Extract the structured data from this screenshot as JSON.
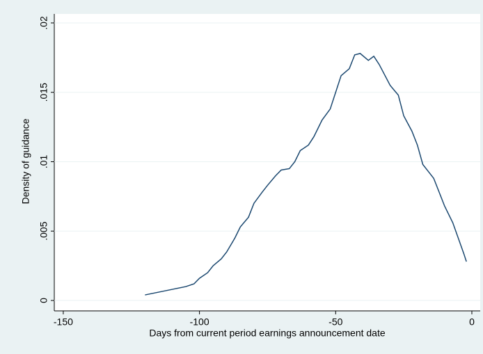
{
  "chart_data": {
    "type": "line",
    "x_label": "Days from current period earnings announcement date",
    "y_label": "Density of guidance",
    "x": [
      -120,
      -115,
      -110,
      -105,
      -102,
      -100,
      -97,
      -95,
      -92,
      -90,
      -87,
      -85,
      -82,
      -80,
      -77,
      -75,
      -72,
      -70,
      -67,
      -65,
      -63,
      -60,
      -58,
      -55,
      -52,
      -50,
      -48,
      -45,
      -43,
      -41,
      -38,
      -36,
      -34,
      -30,
      -27,
      -25,
      -22,
      -20,
      -18,
      -16,
      -14,
      -12,
      -10,
      -7,
      -5,
      -3,
      -2
    ],
    "series": [
      {
        "color": "#1a476f",
        "values": [
          0.0004,
          0.0006,
          0.0008,
          0.001,
          0.0012,
          0.0016,
          0.002,
          0.0025,
          0.003,
          0.0035,
          0.0045,
          0.0053,
          0.006,
          0.007,
          0.0078,
          0.0083,
          0.009,
          0.0094,
          0.0095,
          0.01,
          0.0108,
          0.0112,
          0.0118,
          0.013,
          0.0138,
          0.015,
          0.0162,
          0.0167,
          0.0177,
          0.0178,
          0.0173,
          0.0176,
          0.017,
          0.0155,
          0.0148,
          0.0133,
          0.0122,
          0.0112,
          0.0098,
          0.0093,
          0.0088,
          0.0078,
          0.0068,
          0.0056,
          0.0045,
          0.0034,
          0.0028
        ]
      }
    ],
    "xlim": [
      -153.3,
      3.07
    ],
    "ylim": [
      -0.00075,
      0.02065
    ],
    "xticks": [
      -150,
      -100,
      -50,
      0
    ],
    "yticks": [
      0,
      {
        "value": 0.005,
        "label": ".005"
      },
      {
        "value": 0.01,
        "label": ".01"
      },
      {
        "value": 0.015,
        "label": ".015"
      },
      {
        "value": 0.02,
        "label": ".02"
      }
    ],
    "grid": true
  }
}
